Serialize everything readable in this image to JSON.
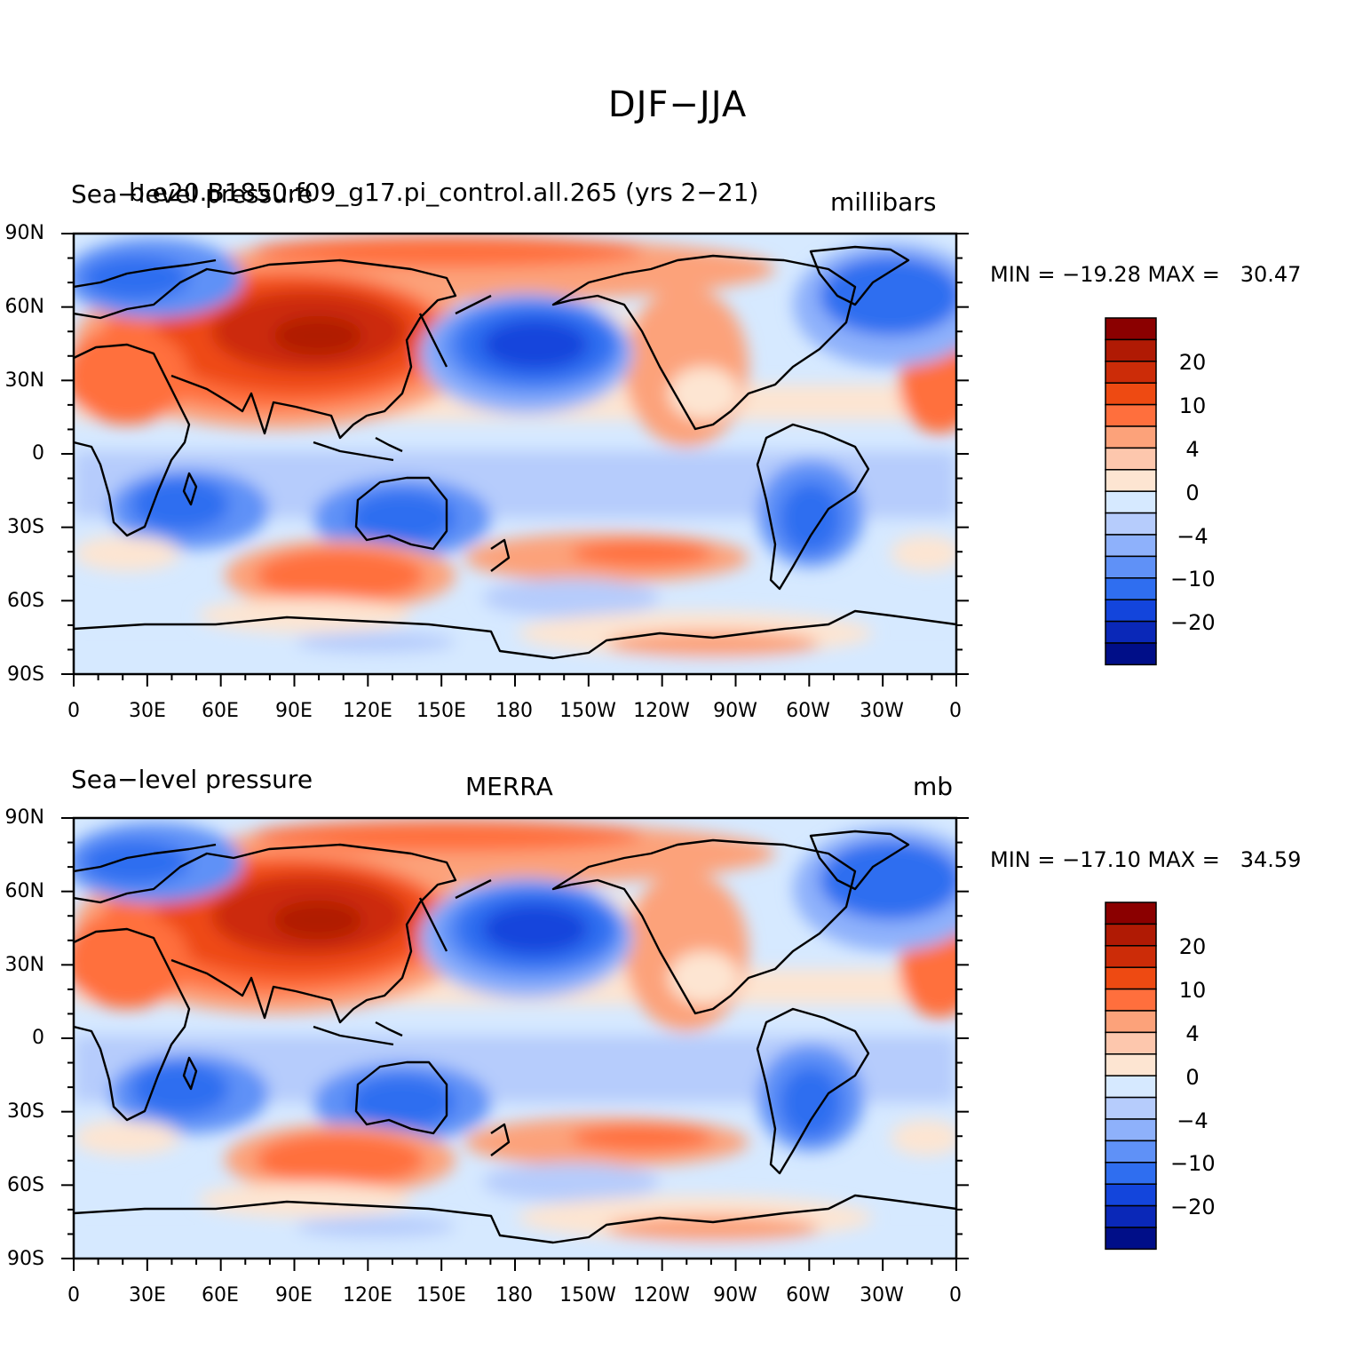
{
  "figure_title": "DJF−JJA",
  "panels": [
    {
      "left_title": "Sea−level pressure",
      "center_title": "b.e20.B1850.f09_g17.pi_control.all.265 (yrs 2−21)",
      "units": "millibars",
      "stats": "MIN = −19.28 MAX =   30.47"
    },
    {
      "left_title": "Sea−level pressure",
      "center_title": "MERRA",
      "units": "mb",
      "stats": "MIN = −17.10 MAX =   34.59"
    }
  ],
  "lat_labels": [
    "90N",
    "60N",
    "30N",
    "0",
    "30S",
    "60S",
    "90S"
  ],
  "lon_labels": [
    "0",
    "30E",
    "60E",
    "90E",
    "120E",
    "150E",
    "180",
    "150W",
    "120W",
    "90W",
    "60W",
    "30W",
    "0"
  ],
  "colorbar": {
    "labels": [
      "20",
      "10",
      "4",
      "0",
      "−4",
      "−10",
      "−20"
    ],
    "colors": [
      "#8b0000",
      "#b01a04",
      "#cc2c08",
      "#ee4a12",
      "#ff6f3d",
      "#fca27a",
      "#fdc7ad",
      "#fde5d2",
      "#d6e9ff",
      "#b6ccfc",
      "#8eb1fb",
      "#5f91f7",
      "#2f6ef0",
      "#1345dc",
      "#0a28b8",
      "#000e88"
    ]
  }
}
